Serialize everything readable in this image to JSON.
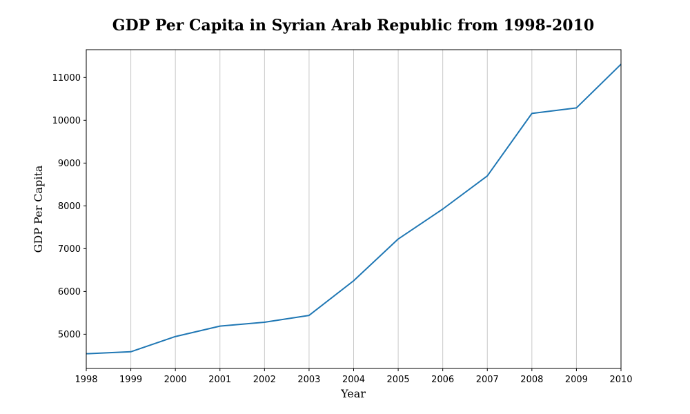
{
  "chart_data": {
    "type": "line",
    "title": "GDP Per Capita in Syrian Arab Republic from 1998-2010",
    "xlabel": "Year",
    "ylabel": "GDP Per Capita",
    "x": [
      1998,
      1999,
      2000,
      2001,
      2002,
      2003,
      2004,
      2005,
      2006,
      2007,
      2008,
      2009,
      2010
    ],
    "series": [
      {
        "values": [
          4544,
          4590,
          4946,
          5190,
          5280,
          5440,
          6250,
          7225,
          7925,
          8700,
          10160,
          10290,
          11310
        ],
        "color": "#1f77b4"
      }
    ],
    "xlim": [
      1998,
      2010
    ],
    "ylim": [
      4200,
      11650
    ],
    "x_ticks": [
      "1998",
      "1999",
      "2000",
      "2001",
      "2002",
      "2003",
      "2004",
      "2005",
      "2006",
      "2007",
      "2008",
      "2009",
      "2010"
    ],
    "y_ticks": [
      "5000",
      "6000",
      "7000",
      "8000",
      "9000",
      "10000",
      "11000"
    ],
    "grid": "vertical",
    "grid_color": "#c8c8c8"
  }
}
